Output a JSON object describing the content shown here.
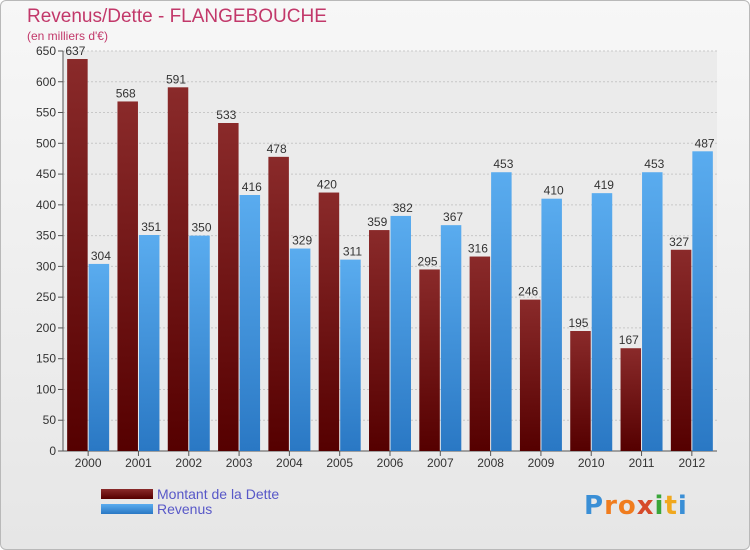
{
  "title": "Revenus/Dette - FLANGEBOUCHE",
  "subtitle": "(en milliers d'€)",
  "logo": {
    "text": "Proxiti",
    "letters": [
      {
        "ch": "P",
        "color": "#3a8fd6"
      },
      {
        "ch": "r",
        "color": "#f07c1e"
      },
      {
        "ch": "o",
        "color": "#f07c1e"
      },
      {
        "ch": "x",
        "color": "#d64a2a"
      },
      {
        "ch": "i",
        "color": "#3aa63a"
      },
      {
        "ch": "t",
        "color": "#f0a81e"
      },
      {
        "ch": "i",
        "color": "#3a8fd6"
      }
    ]
  },
  "colors": {
    "dette": "#7b1515",
    "revenus": "#3f96dc",
    "label": "#333333",
    "axis": "#555555"
  },
  "chart_data": {
    "type": "bar",
    "title": "Revenus/Dette - FLANGEBOUCHE",
    "subtitle": "(en milliers d'€)",
    "categories": [
      "2000",
      "2001",
      "2002",
      "2003",
      "2004",
      "2005",
      "2006",
      "2007",
      "2008",
      "2009",
      "2010",
      "2011",
      "2012"
    ],
    "series": [
      {
        "name": "Montant de la Dette",
        "values": [
          637,
          568,
          591,
          533,
          478,
          420,
          359,
          295,
          316,
          246,
          195,
          167,
          327
        ]
      },
      {
        "name": "Revenus",
        "values": [
          304,
          351,
          350,
          416,
          329,
          311,
          382,
          367,
          453,
          410,
          419,
          453,
          487
        ]
      }
    ],
    "ylim": [
      0,
      650
    ],
    "yticks": [
      0,
      50,
      100,
      150,
      200,
      250,
      300,
      350,
      400,
      450,
      500,
      550,
      600,
      650
    ],
    "grid": true,
    "legend": "bottom-left"
  }
}
